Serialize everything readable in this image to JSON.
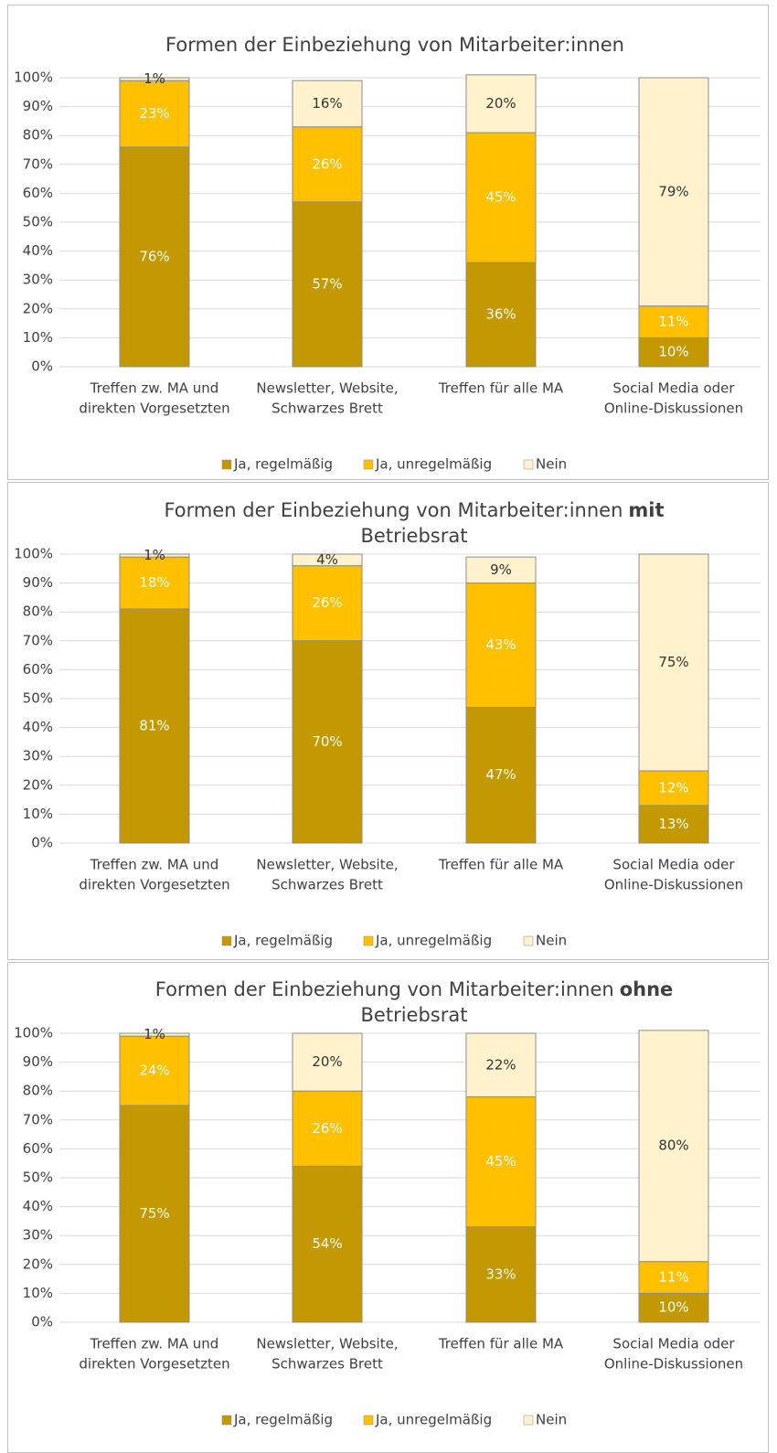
{
  "chart_data": [
    {
      "type": "stacked_bar",
      "title": "Formen der Einbeziehung von Mitarbeiter:innen",
      "categories": [
        [
          "Treffen zw. MA und",
          "direkten Vorgesetzten"
        ],
        [
          "Newsletter, Website,",
          "Schwarzes Brett"
        ],
        [
          "Treffen für alle MA"
        ],
        [
          "Social Media oder",
          "Online-Diskussionen"
        ]
      ],
      "series": [
        {
          "name": "Ja, regelmäßig",
          "color": "#c49800",
          "label_color": "#ffffff",
          "values": [
            76,
            57,
            36,
            10
          ],
          "value_labels": [
            "76%",
            "57%",
            "36%",
            "10%"
          ]
        },
        {
          "name": "Ja, unregelmäßig",
          "color": "#ffc000",
          "label_color": "#ffffff",
          "values": [
            23,
            26,
            45,
            11
          ],
          "value_labels": [
            "23%",
            "26%",
            "45%",
            "11%"
          ]
        },
        {
          "name": "Nein",
          "color": "#fff2cc",
          "label_color": "#333333",
          "values": [
            1,
            16,
            20,
            79
          ],
          "value_labels": [
            "1%",
            "16%",
            "20%",
            "79%"
          ]
        }
      ],
      "ylim": [
        0,
        100
      ],
      "yticks": [
        {
          "value": 0,
          "label": "0%"
        },
        {
          "value": 10,
          "label": "10%"
        },
        {
          "value": 20,
          "label": "20%"
        },
        {
          "value": 30,
          "label": "30%"
        },
        {
          "value": 40,
          "label": "40%"
        },
        {
          "value": 50,
          "label": "50%"
        },
        {
          "value": 60,
          "label": "60%"
        },
        {
          "value": 70,
          "label": "70%"
        },
        {
          "value": 80,
          "label": "80%"
        },
        {
          "value": 90,
          "label": "90%"
        },
        {
          "value": 100,
          "label": "100%"
        }
      ],
      "grid": true,
      "legend": "bottom"
    },
    {
      "type": "stacked_bar",
      "title": "Formen der Einbeziehung von Mitarbeiter:innen",
      "title_bold": "mit",
      "title_line2": "Betriebsrat",
      "categories": [
        [
          "Treffen zw. MA und",
          "direkten Vorgesetzten"
        ],
        [
          "Newsletter, Website,",
          "Schwarzes Brett"
        ],
        [
          "Treffen für alle MA"
        ],
        [
          "Social Media oder",
          "Online-Diskussionen"
        ]
      ],
      "series": [
        {
          "name": "Ja, regelmäßig",
          "color": "#c49800",
          "label_color": "#ffffff",
          "values": [
            81,
            70,
            47,
            13
          ],
          "value_labels": [
            "81%",
            "70%",
            "47%",
            "13%"
          ]
        },
        {
          "name": "Ja, unregelmäßig",
          "color": "#ffc000",
          "label_color": "#ffffff",
          "values": [
            18,
            26,
            43,
            12
          ],
          "value_labels": [
            "18%",
            "26%",
            "43%",
            "12%"
          ]
        },
        {
          "name": "Nein",
          "color": "#fff2cc",
          "label_color": "#333333",
          "values": [
            1,
            4,
            9,
            75
          ],
          "value_labels": [
            "1%",
            "4%",
            "9%",
            "75%"
          ]
        }
      ],
      "ylim": [
        0,
        100
      ],
      "yticks": [
        {
          "value": 0,
          "label": "0%"
        },
        {
          "value": 10,
          "label": "10%"
        },
        {
          "value": 20,
          "label": "20%"
        },
        {
          "value": 30,
          "label": "30%"
        },
        {
          "value": 40,
          "label": "40%"
        },
        {
          "value": 50,
          "label": "50%"
        },
        {
          "value": 60,
          "label": "60%"
        },
        {
          "value": 70,
          "label": "70%"
        },
        {
          "value": 80,
          "label": "80%"
        },
        {
          "value": 90,
          "label": "90%"
        },
        {
          "value": 100,
          "label": "100%"
        }
      ],
      "grid": true,
      "legend": "bottom"
    },
    {
      "type": "stacked_bar",
      "title": "Formen der Einbeziehung von Mitarbeiter:innen",
      "title_bold": "ohne",
      "title_line2": "Betriebsrat",
      "categories": [
        [
          "Treffen zw. MA und",
          "direkten Vorgesetzten"
        ],
        [
          "Newsletter, Website,",
          "Schwarzes Brett"
        ],
        [
          "Treffen für alle MA"
        ],
        [
          "Social Media oder",
          "Online-Diskussionen"
        ]
      ],
      "series": [
        {
          "name": "Ja, regelmäßig",
          "color": "#c49800",
          "label_color": "#ffffff",
          "values": [
            75,
            54,
            33,
            10
          ],
          "value_labels": [
            "75%",
            "54%",
            "33%",
            "10%"
          ]
        },
        {
          "name": "Ja, unregelmäßig",
          "color": "#ffc000",
          "label_color": "#ffffff",
          "values": [
            24,
            26,
            45,
            11
          ],
          "value_labels": [
            "24%",
            "26%",
            "45%",
            "11%"
          ]
        },
        {
          "name": "Nein",
          "color": "#fff2cc",
          "label_color": "#333333",
          "values": [
            1,
            20,
            22,
            80
          ],
          "value_labels": [
            "1%",
            "20%",
            "22%",
            "80%"
          ]
        }
      ],
      "ylim": [
        0,
        100
      ],
      "yticks": [
        {
          "value": 0,
          "label": "0%"
        },
        {
          "value": 10,
          "label": "10%"
        },
        {
          "value": 20,
          "label": "20%"
        },
        {
          "value": 30,
          "label": "30%"
        },
        {
          "value": 40,
          "label": "40%"
        },
        {
          "value": 50,
          "label": "50%"
        },
        {
          "value": 60,
          "label": "60%"
        },
        {
          "value": 70,
          "label": "70%"
        },
        {
          "value": 80,
          "label": "80%"
        },
        {
          "value": 90,
          "label": "90%"
        },
        {
          "value": 100,
          "label": "100%"
        }
      ],
      "grid": true,
      "legend": "bottom"
    }
  ]
}
